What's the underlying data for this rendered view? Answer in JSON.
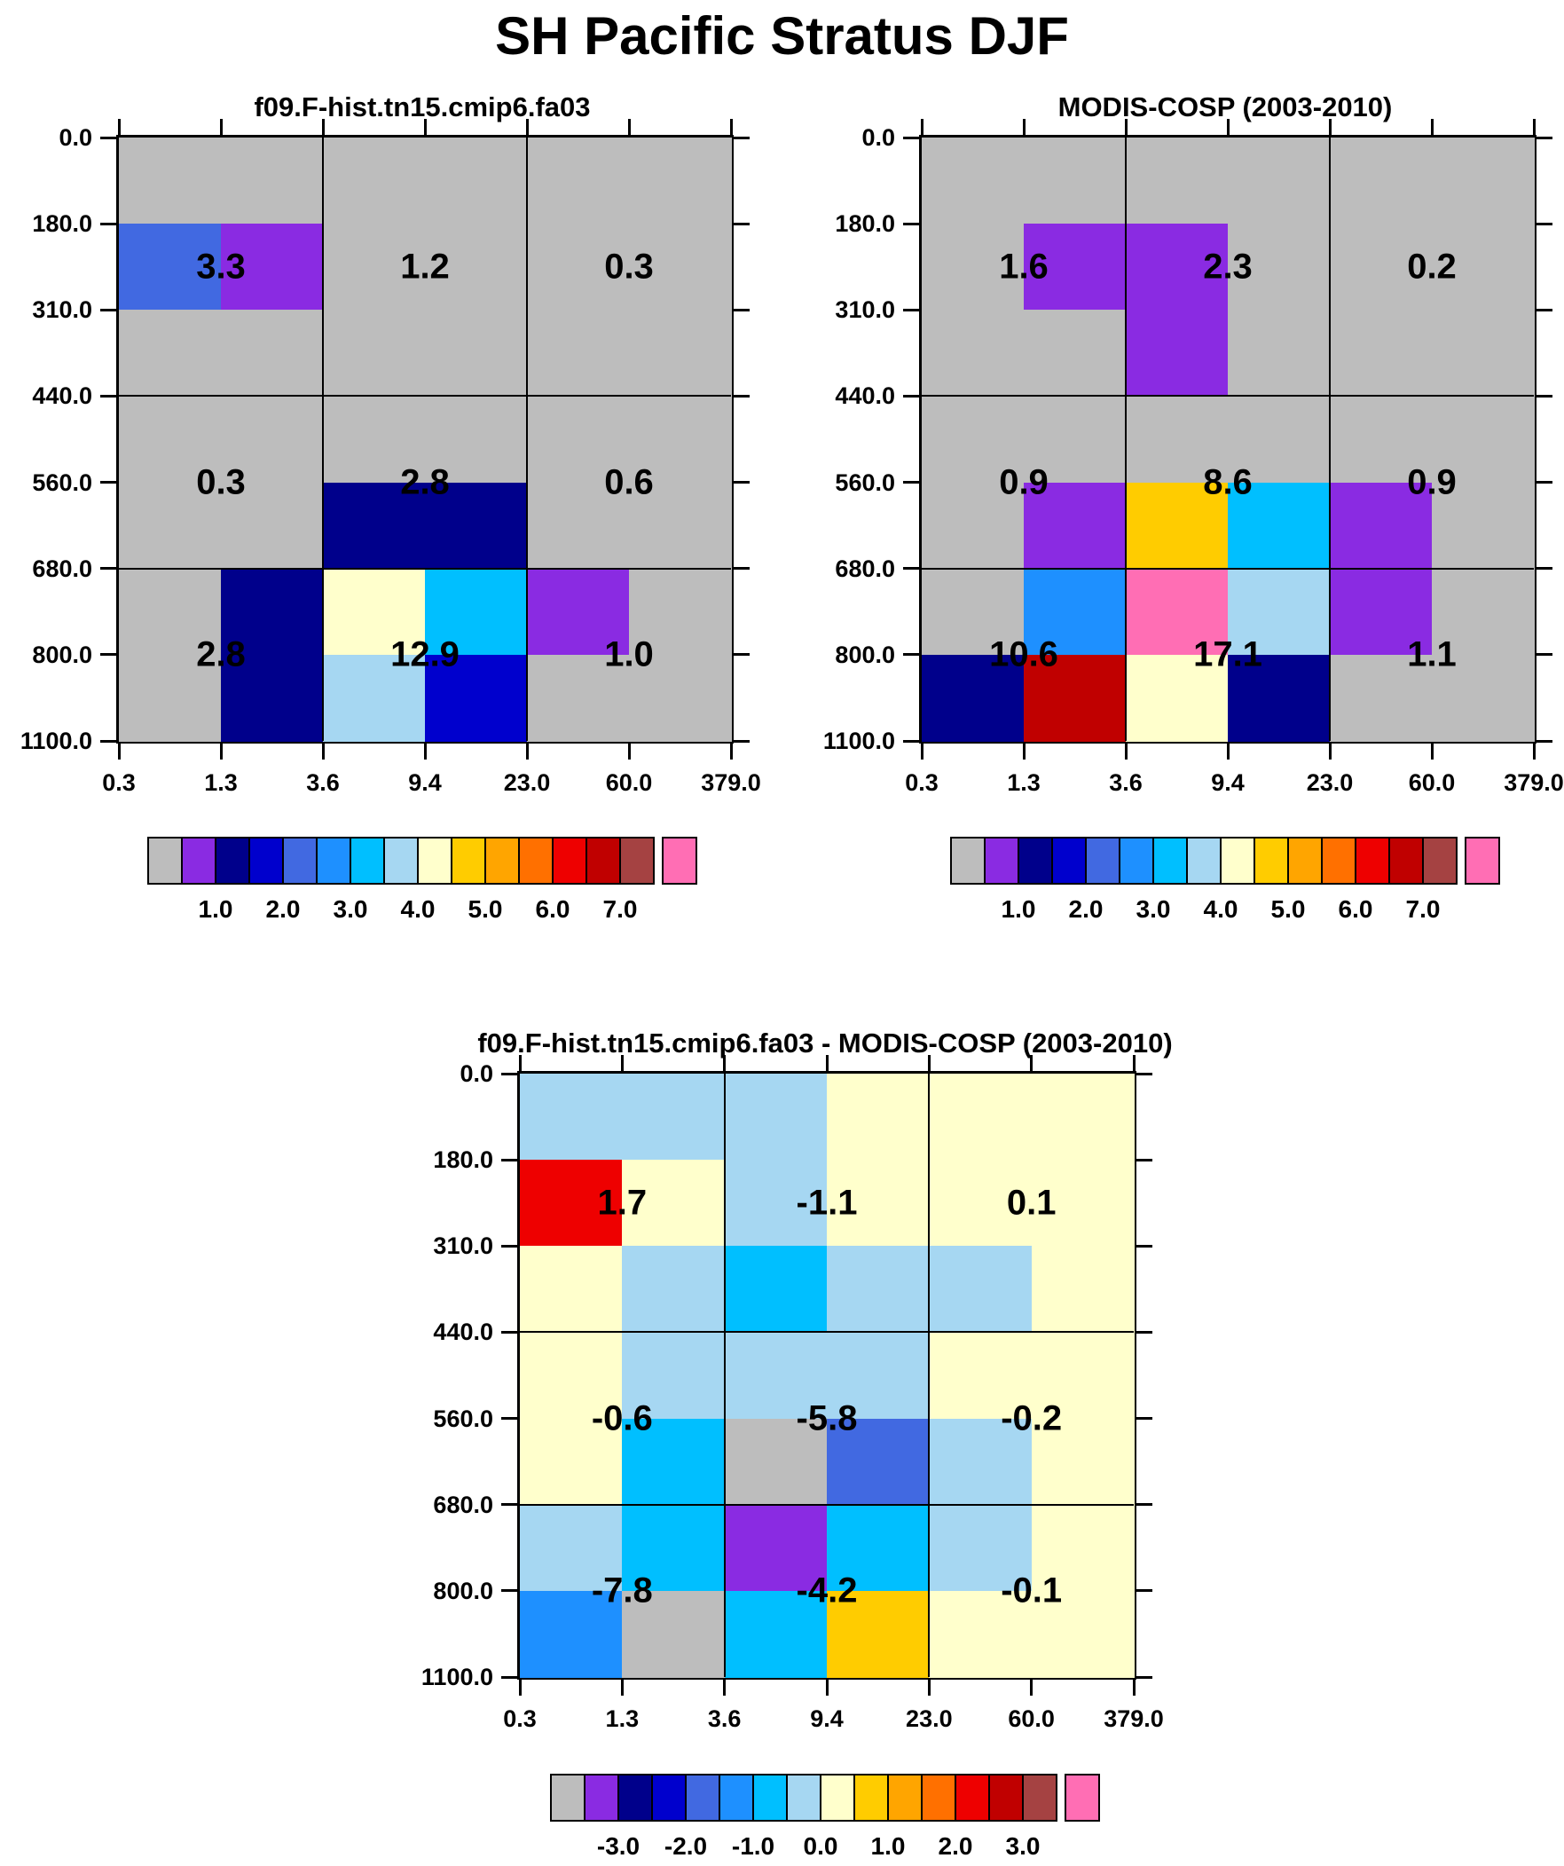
{
  "title": "SH Pacific Stratus DJF",
  "palette": {
    "gray": "#BDBDBD",
    "violet": "#8A2BE2",
    "navy": "#00008B",
    "blue": "#0000CD",
    "royal": "#4169E1",
    "dodger": "#1E90FF",
    "deepsky": "#00BFFF",
    "lightblue": "#A6D7F2",
    "cream": "#FFFFCC",
    "gold": "#FFCC00",
    "orange": "#FFA500",
    "darkorange": "#FF7000",
    "red": "#EE0000",
    "darkred": "#C00000",
    "brown": "#A54242",
    "pink": "#FF6EB4"
  },
  "colorbar_order": [
    "gray",
    "violet",
    "navy",
    "blue",
    "royal",
    "dodger",
    "deepsky",
    "lightblue",
    "cream",
    "gold",
    "orange",
    "darkorange",
    "red",
    "darkred",
    "brown",
    "pink"
  ],
  "chart_data": [
    {
      "type": "heatmap",
      "title": "f09.F-hist.tn15.cmip6.fa03",
      "y_ticks": [
        "0.0",
        "180.0",
        "310.0",
        "440.0",
        "560.0",
        "680.0",
        "800.0",
        "1100.0"
      ],
      "x_ticks": [
        "0.3",
        "1.3",
        "3.6",
        "9.4",
        "23.0",
        "60.0",
        "379.0"
      ],
      "cells": [
        [
          "gray",
          "gray",
          "gray",
          "gray",
          "gray",
          "gray"
        ],
        [
          "royal",
          "violet",
          "gray",
          "gray",
          "gray",
          "gray"
        ],
        [
          "gray",
          "gray",
          "gray",
          "gray",
          "gray",
          "gray"
        ],
        [
          "gray",
          "gray",
          "gray",
          "gray",
          "gray",
          "gray"
        ],
        [
          "gray",
          "gray",
          "navy",
          "navy",
          "gray",
          "gray"
        ],
        [
          "gray",
          "navy",
          "cream",
          "deepsky",
          "violet",
          "gray"
        ],
        [
          "gray",
          "navy",
          "lightblue",
          "blue",
          "gray",
          "gray"
        ]
      ],
      "overlay_values": [
        [
          "3.3",
          "1.2",
          "0.3"
        ],
        [
          "0.3",
          "2.8",
          "0.6"
        ],
        [
          "2.8",
          "12.9",
          "1.0"
        ]
      ],
      "colorbar_labels": [
        "1.0",
        "2.0",
        "3.0",
        "4.0",
        "5.0",
        "6.0",
        "7.0"
      ]
    },
    {
      "type": "heatmap",
      "title": "MODIS-COSP (2003-2010)",
      "y_ticks": [
        "0.0",
        "180.0",
        "310.0",
        "440.0",
        "560.0",
        "680.0",
        "800.0",
        "1100.0"
      ],
      "x_ticks": [
        "0.3",
        "1.3",
        "3.6",
        "9.4",
        "23.0",
        "60.0",
        "379.0"
      ],
      "cells": [
        [
          "gray",
          "gray",
          "gray",
          "gray",
          "gray",
          "gray"
        ],
        [
          "gray",
          "violet",
          "violet",
          "gray",
          "gray",
          "gray"
        ],
        [
          "gray",
          "gray",
          "violet",
          "gray",
          "gray",
          "gray"
        ],
        [
          "gray",
          "gray",
          "gray",
          "gray",
          "gray",
          "gray"
        ],
        [
          "gray",
          "violet",
          "gold",
          "deepsky",
          "violet",
          "gray"
        ],
        [
          "gray",
          "dodger",
          "pink",
          "lightblue",
          "violet",
          "gray"
        ],
        [
          "navy",
          "darkred",
          "cream",
          "navy",
          "gray",
          "gray"
        ]
      ],
      "overlay_values": [
        [
          "1.6",
          "2.3",
          "0.2"
        ],
        [
          "0.9",
          "8.6",
          "0.9"
        ],
        [
          "10.6",
          "17.1",
          "1.1"
        ]
      ],
      "colorbar_labels": [
        "1.0",
        "2.0",
        "3.0",
        "4.0",
        "5.0",
        "6.0",
        "7.0"
      ]
    },
    {
      "type": "heatmap",
      "title": "f09.F-hist.tn15.cmip6.fa03 - MODIS-COSP (2003-2010)",
      "y_ticks": [
        "0.0",
        "180.0",
        "310.0",
        "440.0",
        "560.0",
        "680.0",
        "800.0",
        "1100.0"
      ],
      "x_ticks": [
        "0.3",
        "1.3",
        "3.6",
        "9.4",
        "23.0",
        "60.0",
        "379.0"
      ],
      "cells": [
        [
          "lightblue",
          "lightblue",
          "lightblue",
          "cream",
          "cream",
          "cream"
        ],
        [
          "red",
          "cream",
          "lightblue",
          "cream",
          "cream",
          "cream"
        ],
        [
          "cream",
          "lightblue",
          "deepsky",
          "lightblue",
          "lightblue",
          "cream"
        ],
        [
          "cream",
          "lightblue",
          "lightblue",
          "lightblue",
          "cream",
          "cream"
        ],
        [
          "cream",
          "deepsky",
          "gray",
          "royal",
          "lightblue",
          "cream"
        ],
        [
          "lightblue",
          "deepsky",
          "violet",
          "deepsky",
          "lightblue",
          "cream"
        ],
        [
          "dodger",
          "gray",
          "deepsky",
          "gold",
          "cream",
          "cream"
        ]
      ],
      "overlay_values": [
        [
          "1.7",
          "-1.1",
          "0.1"
        ],
        [
          "-0.6",
          "-5.8",
          "-0.2"
        ],
        [
          "-7.8",
          "-4.2",
          "-0.1"
        ]
      ],
      "colorbar_labels": [
        "-3.0",
        "-2.0",
        "-1.0",
        "0.0",
        "1.0",
        "2.0",
        "3.0"
      ]
    }
  ]
}
